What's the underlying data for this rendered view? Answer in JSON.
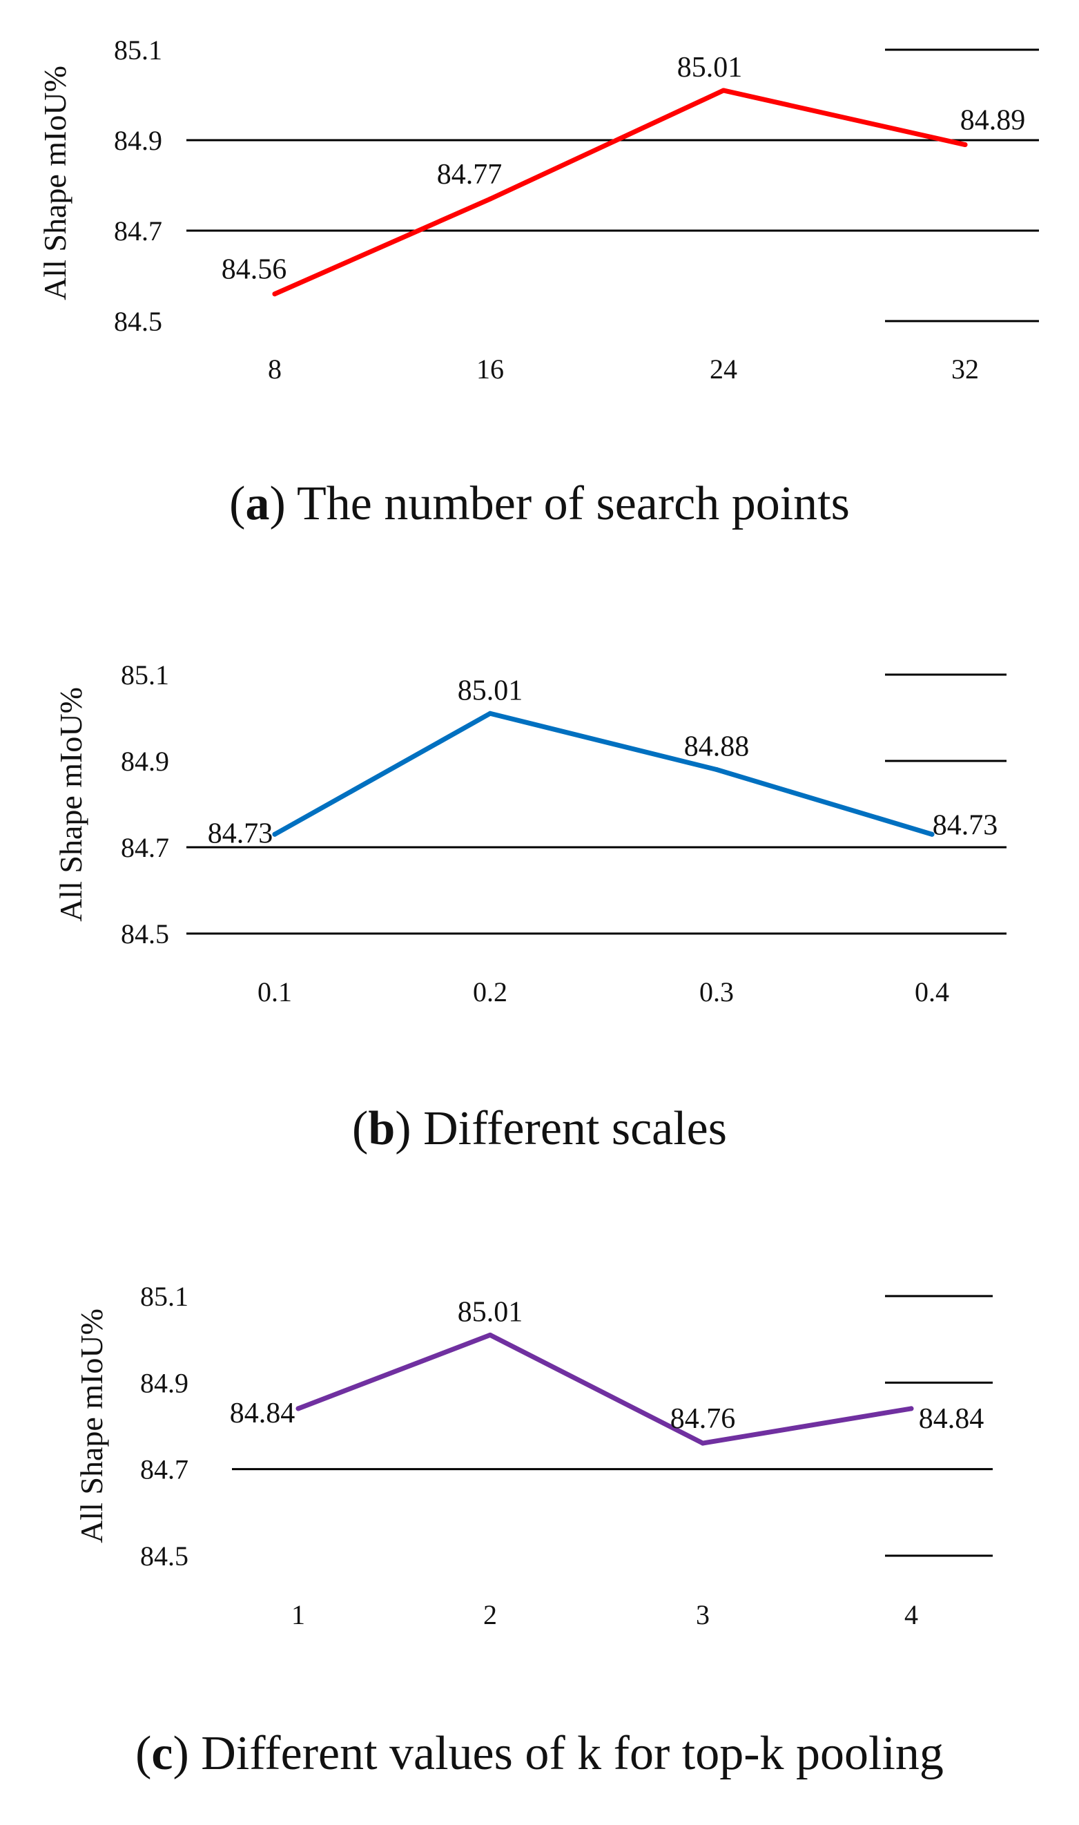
{
  "chart_data": [
    {
      "type": "line",
      "panel_letter": "a",
      "caption": "The number of search points",
      "ylabel": "All Shape mIoU%",
      "categories": [
        "8",
        "16",
        "24",
        "32"
      ],
      "series": [
        {
          "values": [
            84.56,
            84.77,
            85.01,
            84.89
          ]
        }
      ],
      "data_labels": [
        "84.56",
        "84.77",
        "85.01",
        "84.89"
      ],
      "y_ticks": [
        "85.1",
        "84.9",
        "84.7",
        "84.5"
      ],
      "ylim": [
        84.5,
        85.1
      ],
      "grid": true,
      "line_color": "#ff0000"
    },
    {
      "type": "line",
      "panel_letter": "b",
      "caption": "Different scales",
      "ylabel": "All Shape mIoU%",
      "categories": [
        "0.1",
        "0.2",
        "0.3",
        "0.4"
      ],
      "series": [
        {
          "values": [
            84.73,
            85.01,
            84.88,
            84.73
          ]
        }
      ],
      "data_labels": [
        "84.73",
        "85.01",
        "84.88",
        "84.73"
      ],
      "y_ticks": [
        "85.1",
        "84.9",
        "84.7",
        "84.5"
      ],
      "ylim": [
        84.5,
        85.1
      ],
      "grid": true,
      "line_color": "#0070c0"
    },
    {
      "type": "line",
      "panel_letter": "c",
      "caption": "Different values of k for top-k pooling",
      "ylabel": "All Shape mIoU%",
      "categories": [
        "1",
        "2",
        "3",
        "4"
      ],
      "series": [
        {
          "values": [
            84.84,
            85.01,
            84.76,
            84.84
          ]
        }
      ],
      "data_labels": [
        "84.84",
        "85.01",
        "84.76",
        "84.84"
      ],
      "y_ticks": [
        "85.1",
        "84.9",
        "84.7",
        "84.5"
      ],
      "ylim": [
        84.5,
        85.1
      ],
      "grid": true,
      "line_color": "#7030a0"
    }
  ]
}
